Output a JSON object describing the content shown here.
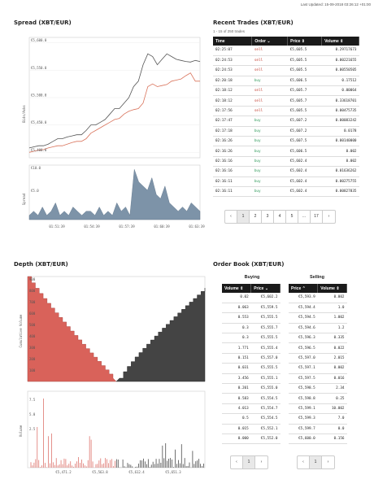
{
  "header": {
    "last_updated": "Last Updated: 15-09-2018 03:26:12 +01:00"
  },
  "spread": {
    "title": "Spread (XBT/EUR)",
    "ylabel_top": "Bids/Asks",
    "ylabel_bottom": "Spread",
    "top_ticks": [
      "€5,600.0",
      "€5,550.0",
      "€5,500.0",
      "€5,450.0",
      "€5,400.0"
    ],
    "bottom_ticks": [
      "€10.0",
      "€5.0"
    ],
    "x_ticks": [
      "01:51:39",
      "01:54:39",
      "01:57:39",
      "01:60:39",
      "01:63:39"
    ],
    "chart_data": {
      "type": "line",
      "series": [
        {
          "name": "",
          "color": "#555555",
          "values": [
            5408,
            5410,
            5412,
            5412,
            5415,
            5420,
            5425,
            5425,
            5428,
            5430,
            5432,
            5432,
            5440,
            5450,
            5450,
            5455,
            5460,
            5470,
            5480,
            5480,
            5490,
            5500,
            5520,
            5530,
            5560,
            5580,
            5575,
            5560,
            5570,
            5580,
            5575,
            5570,
            5568,
            5566,
            5565,
            5568,
            5566
          ]
        },
        {
          "name": "",
          "color": "#d9735b",
          "values": [
            5400,
            5402,
            5404,
            5405,
            5408,
            5410,
            5412,
            5412,
            5415,
            5418,
            5420,
            5420,
            5425,
            5435,
            5440,
            5445,
            5450,
            5455,
            5460,
            5462,
            5470,
            5475,
            5478,
            5480,
            5490,
            5520,
            5525,
            5520,
            5522,
            5524,
            5530,
            5532,
            5534,
            5540,
            5545,
            5530,
            5530
          ]
        }
      ],
      "spread_values": [
        1,
        2,
        1,
        3,
        1,
        2,
        4,
        1,
        2,
        1,
        3,
        2,
        1,
        2,
        2,
        1,
        3,
        1,
        2,
        1,
        4,
        2,
        3,
        1,
        12,
        9,
        8,
        7,
        10,
        6,
        5,
        8,
        4,
        3,
        2,
        3,
        2,
        4,
        3,
        2
      ]
    }
  },
  "trades": {
    "title": "Recent Trades (XBT/EUR)",
    "subtitle": "1 - 15 of 250 trades",
    "headers": [
      "Time",
      "Order",
      "Price",
      "Volume"
    ],
    "rows": [
      [
        "02:25:07",
        "sell",
        "€5,605.5",
        "0.29717673"
      ],
      [
        "02:24:53",
        "sell",
        "€5,605.5",
        "0.00221655"
      ],
      [
        "02:24:53",
        "sell",
        "€5,605.5",
        "0.00550505"
      ],
      [
        "02:20:18",
        "buy",
        "€5,606.5",
        "0.17512"
      ],
      [
        "02:18:12",
        "sell",
        "€5,605.7",
        "0.00064"
      ],
      [
        "02:18:12",
        "sell",
        "€5,605.7",
        "0.33618701"
      ],
      [
        "02:17:56",
        "sell",
        "€5,605.5",
        "0.00475735"
      ],
      [
        "02:17:47",
        "buy",
        "€5,607.2",
        "0.00083242"
      ],
      [
        "02:17:18",
        "buy",
        "€5,607.2",
        "0.0178"
      ],
      [
        "02:16:26",
        "buy",
        "€5,607.5",
        "0.00140000"
      ],
      [
        "02:16:26",
        "buy",
        "€5,606.5",
        "0.002"
      ],
      [
        "02:16:16",
        "buy",
        "€5,602.4",
        "0.002"
      ],
      [
        "02:16:16",
        "buy",
        "€5,602.4",
        "0.01636262"
      ],
      [
        "02:16:11",
        "buy",
        "€5,602.4",
        "0.00275755"
      ],
      [
        "02:16:11",
        "buy",
        "€5,602.4",
        "0.00827835"
      ]
    ],
    "pages": [
      "‹",
      "1",
      "2",
      "3",
      "4",
      "5",
      "...",
      "17",
      "›"
    ]
  },
  "depth": {
    "title": "Depth (XBT/EUR)",
    "ylabel_top": "Cumulative Volume",
    "ylabel_bottom": "Volume",
    "top_ticks": [
      "900",
      "800",
      "700",
      "600",
      "500",
      "400",
      "300",
      "200",
      "100"
    ],
    "bottom_ticks": [
      "7.5",
      "5.0",
      "2.5"
    ],
    "x_ticks": [
      "€5,471.2",
      "€5,563.8",
      "€5,612.4",
      "€5,651.3"
    ]
  },
  "book": {
    "title": "Order Book (XBT/EUR)",
    "buying_label": "Buying",
    "selling_label": "Selling",
    "buy_headers": [
      "Volume",
      "Price"
    ],
    "sell_headers": [
      "Price",
      "Volume"
    ],
    "buy_rows": [
      [
        "0.02",
        "€5,602.2"
      ],
      [
        "0.063",
        "€5,559.5"
      ],
      [
        "0.553",
        "€5,555.5"
      ],
      [
        "0.3",
        "€5,555.7"
      ],
      [
        "0.3",
        "€5,555.5"
      ],
      [
        "1.771",
        "€5,555.4"
      ],
      [
        "0.151",
        "€5,557.0"
      ],
      [
        "0.031",
        "€5,555.5"
      ],
      [
        "3.456",
        "€5,555.1"
      ],
      [
        "0.201",
        "€5,555.0"
      ],
      [
        "0.583",
        "€5,554.5"
      ],
      [
        "4.013",
        "€5,554.7"
      ],
      [
        "0.5",
        "€5,554.5"
      ],
      [
        "0.015",
        "€5,552.1"
      ],
      [
        "0.000",
        "€5,552.0"
      ]
    ],
    "sell_rows": [
      [
        "€5,593.9",
        "0.002"
      ],
      [
        "€5,594.4",
        "1.0"
      ],
      [
        "€5,594.5",
        "1.002"
      ],
      [
        "€5,594.6",
        "1.2"
      ],
      [
        "€5,596.3",
        "0.335"
      ],
      [
        "€5,596.5",
        "0.022"
      ],
      [
        "€5,597.0",
        "2.015"
      ],
      [
        "€5,597.1",
        "0.002"
      ],
      [
        "€5,597.5",
        "0.016"
      ],
      [
        "€5,598.5",
        "2.34"
      ],
      [
        "€5,598.8",
        "0.25"
      ],
      [
        "€5,599.1",
        "10.002"
      ],
      [
        "€5,599.3",
        "7.0"
      ],
      [
        "€5,599.7",
        "0.0"
      ],
      [
        "€5,600.0",
        "0.156"
      ]
    ],
    "pager": [
      "‹",
      "1",
      "›"
    ]
  }
}
